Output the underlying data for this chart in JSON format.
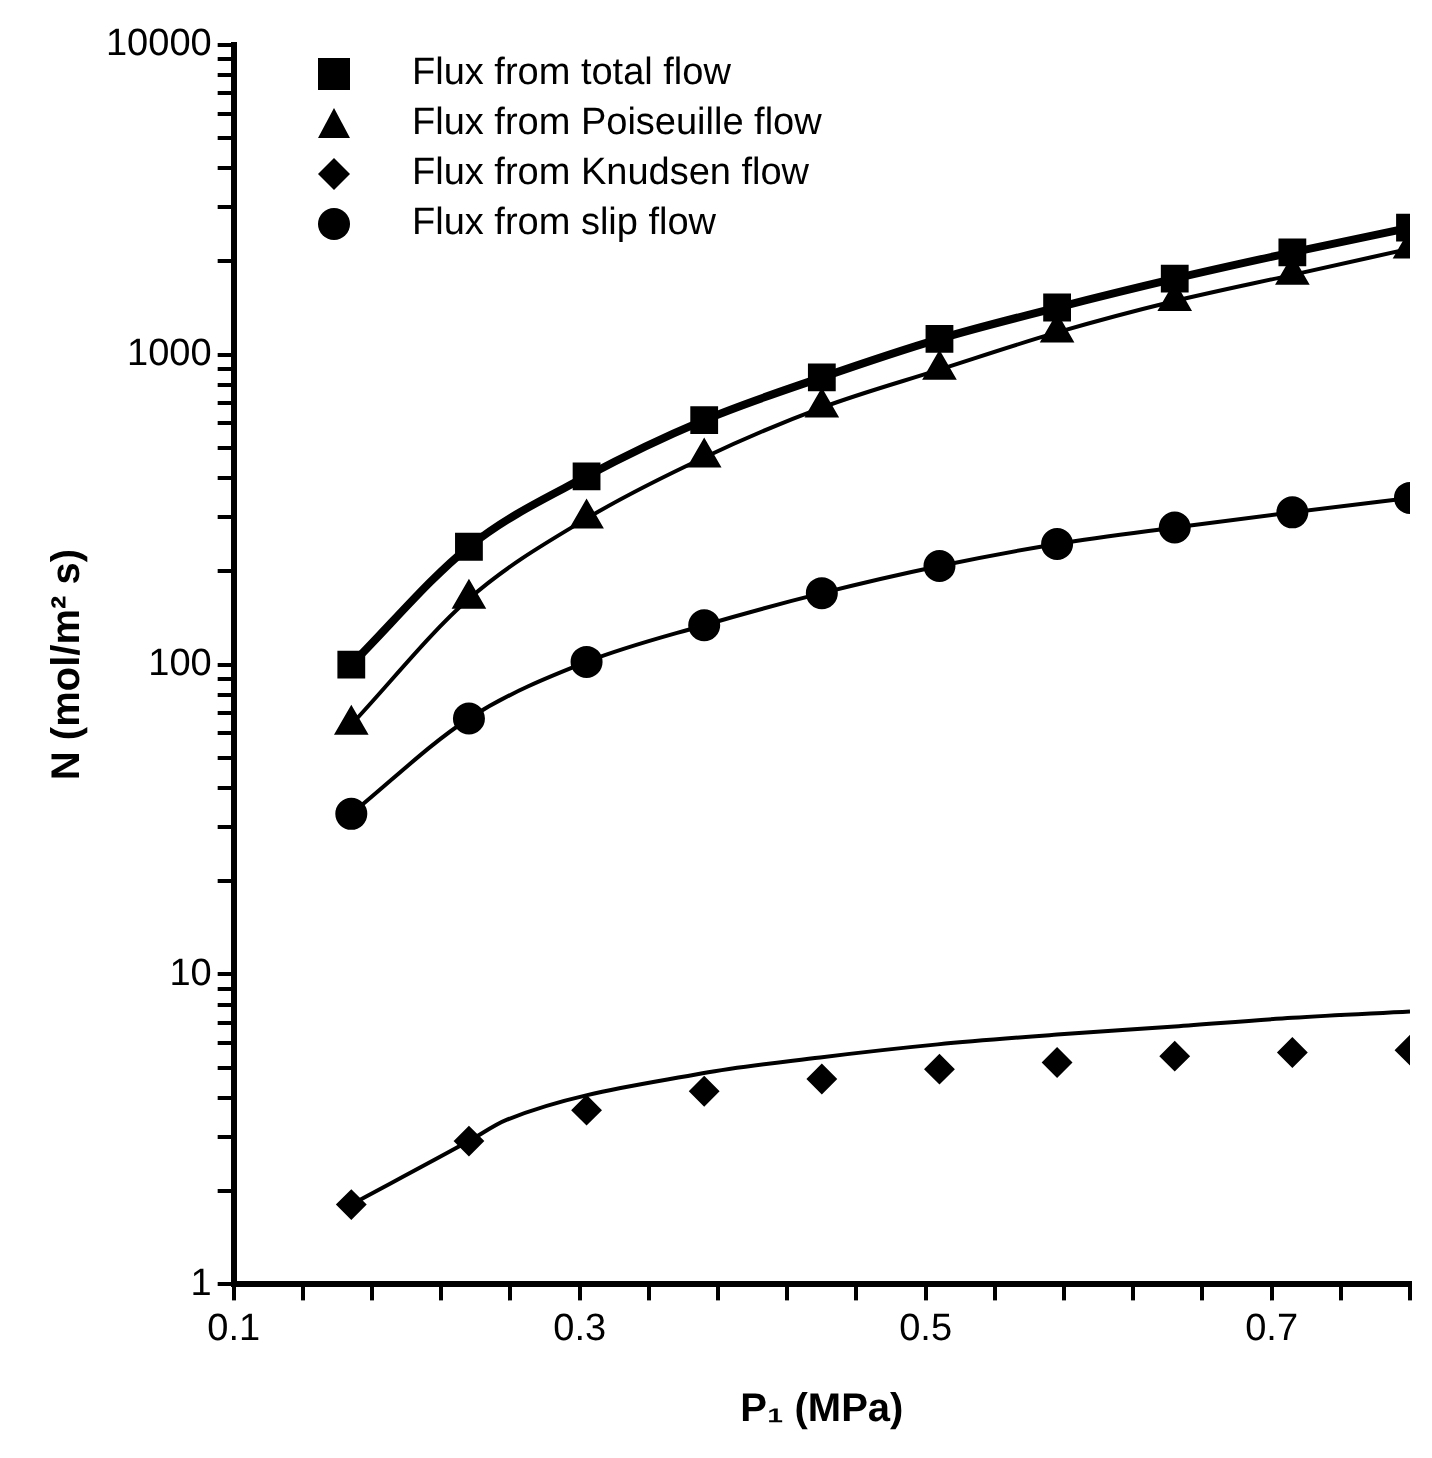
{
  "chart_data": {
    "type": "line",
    "xlabel": "P₁ (MPa)",
    "ylabel": "N (mol/m² s)",
    "x": [
      0.168,
      0.236,
      0.304,
      0.372,
      0.44,
      0.508,
      0.576,
      0.644,
      0.712,
      0.78
    ],
    "series": [
      {
        "name": "Flux from total flow",
        "marker": "square",
        "color": "#000000",
        "values": [
          100,
          240,
          405,
          615,
          845,
          1125,
          1420,
          1760,
          2140,
          2570
        ]
      },
      {
        "name": "Flux from Poiseuille flow",
        "marker": "triangle",
        "color": "#000000",
        "values": [
          64,
          163,
          296,
          466,
          675,
          895,
          1180,
          1490,
          1810,
          2200
        ]
      },
      {
        "name": "Flux from Knudsen flow",
        "type": "scatter",
        "marker": "diamond",
        "color": "#000000",
        "values": [
          1.81,
          2.9,
          3.65,
          4.2,
          4.6,
          4.95,
          5.2,
          5.45,
          5.6,
          5.7
        ]
      },
      {
        "name": "Flux from slip flow",
        "marker": "circle",
        "color": "#000000",
        "values": [
          33,
          67,
          102,
          134,
          170,
          208,
          245,
          277,
          310,
          345
        ]
      },
      {
        "marker": "none",
        "color": "#000000",
        "x": [
          0.168,
          0.236,
          0.258,
          0.371,
          0.439,
          0.507,
          0.576,
          0.644,
          0.712,
          0.78
        ],
        "values": [
          1.81,
          2.9,
          3.4,
          4.8,
          5.4,
          5.95,
          6.4,
          6.8,
          7.25,
          7.6
        ]
      }
    ],
    "log": "y",
    "xlim": [
      0.1,
      0.78
    ],
    "ylim": [
      1,
      10000
    ],
    "xticks": [
      0.1,
      {
        "value": 0.14,
        "label": null
      },
      {
        "value": 0.18,
        "label": null
      },
      {
        "value": 0.22,
        "label": null
      },
      {
        "value": 0.26,
        "label": null
      },
      0.3,
      {
        "value": 0.34,
        "label": null
      },
      {
        "value": 0.38,
        "label": null
      },
      {
        "value": 0.42,
        "label": null
      },
      {
        "value": 0.46,
        "label": null
      },
      0.5,
      {
        "value": 0.54,
        "label": null
      },
      {
        "value": 0.58,
        "label": null
      },
      {
        "value": 0.62,
        "label": null
      },
      {
        "value": 0.66,
        "label": null
      },
      0.7,
      {
        "value": 0.74,
        "label": null
      },
      {
        "value": 0.78,
        "label": null
      }
    ],
    "yticks": [
      1,
      {
        "value": 2,
        "label": null
      },
      {
        "value": 3,
        "label": null
      },
      {
        "value": 4,
        "label": null
      },
      {
        "value": 5,
        "label": null
      },
      {
        "value": 6,
        "label": null
      },
      {
        "value": 7,
        "label": null
      },
      {
        "value": 8,
        "label": null
      },
      {
        "value": 9,
        "label": null
      },
      10,
      {
        "value": 20,
        "label": null
      },
      {
        "value": 30,
        "label": null
      },
      {
        "value": 40,
        "label": null
      },
      {
        "value": 50,
        "label": null
      },
      {
        "value": 60,
        "label": null
      },
      {
        "value": 70,
        "label": null
      },
      {
        "value": 80,
        "label": null
      },
      {
        "value": 90,
        "label": null
      },
      100,
      {
        "value": 200,
        "label": null
      },
      {
        "value": 300,
        "label": null
      },
      {
        "value": 400,
        "label": null
      },
      {
        "value": 500,
        "label": null
      },
      {
        "value": 600,
        "label": null
      },
      {
        "value": 700,
        "label": null
      },
      {
        "value": 800,
        "label": null
      },
      {
        "value": 900,
        "label": null
      },
      1000,
      {
        "value": 2000,
        "label": null
      },
      {
        "value": 3000,
        "label": null
      },
      {
        "value": 4000,
        "label": null
      },
      {
        "value": 5000,
        "label": null
      },
      {
        "value": 6000,
        "label": null
      },
      {
        "value": 7000,
        "label": null
      },
      {
        "value": 8000,
        "label": null
      },
      {
        "value": 9000,
        "label": null
      },
      10000
    ],
    "grid": false,
    "legend": "top left"
  }
}
